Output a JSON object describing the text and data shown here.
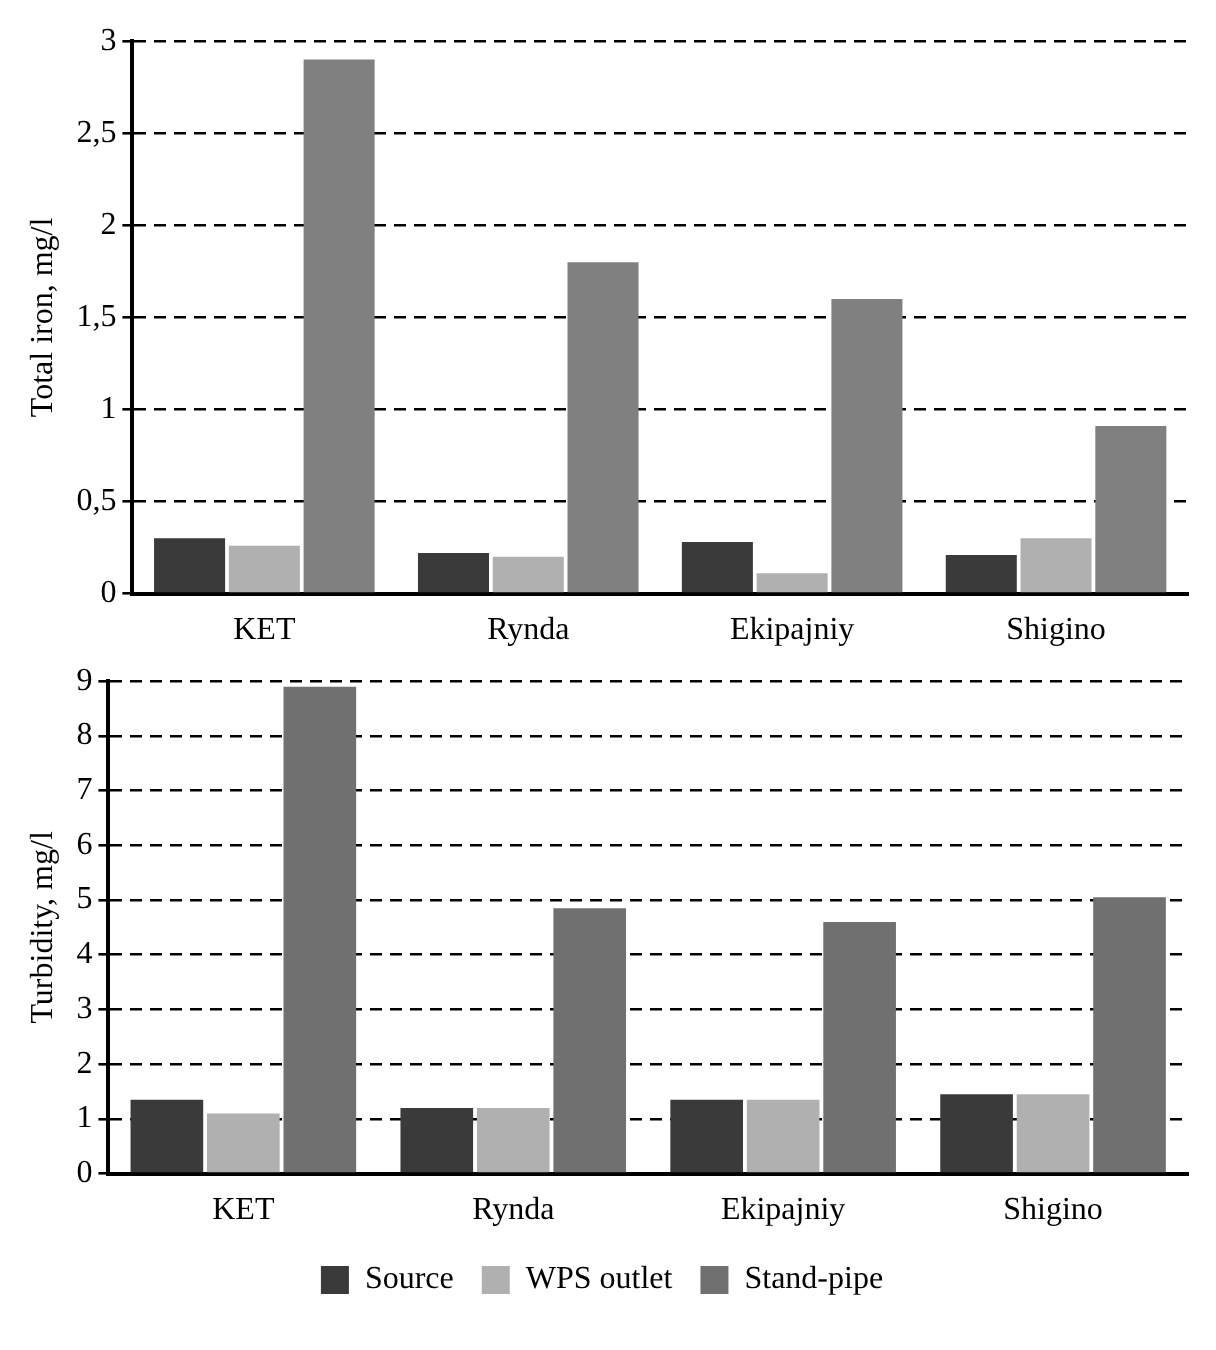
{
  "chart_data": [
    {
      "type": "bar",
      "ylabel": "Total iron, mg/l",
      "categories": [
        "KET",
        "Rynda",
        "Ekipajniy",
        "Shigino"
      ],
      "series": [
        {
          "color": "#3a3a3a",
          "values": [
            0.3,
            0.22,
            0.28,
            0.21
          ]
        },
        {
          "color": "#b0b0b0",
          "values": [
            0.26,
            0.2,
            0.11,
            0.3
          ]
        },
        {
          "color": "#808080",
          "values": [
            2.9,
            1.8,
            1.6,
            0.91
          ]
        }
      ],
      "ylim": [
        0,
        3
      ],
      "yticks": [
        0,
        {
          "value": 0.5,
          "label": "0,5"
        },
        1,
        {
          "value": 1.5,
          "label": "1,5"
        },
        2,
        {
          "value": 2.5,
          "label": "2,5"
        },
        3
      ],
      "grid": "y",
      "legend": false
    },
    {
      "type": "bar",
      "ylabel": "Turbidity, mg/l",
      "categories": [
        "KET",
        "Rynda",
        "Ekipajniy",
        "Shigino"
      ],
      "series": [
        {
          "name": "Source",
          "color": "#3a3a3a",
          "values": [
            1.35,
            1.2,
            1.35,
            1.45
          ]
        },
        {
          "name": "WPS outlet",
          "color": "#b0b0b0",
          "values": [
            1.1,
            1.2,
            1.35,
            1.45
          ]
        },
        {
          "name": "Stand-pipe",
          "color": "#707070",
          "values": [
            8.9,
            4.85,
            4.6,
            5.05
          ]
        }
      ],
      "ylim": [
        0,
        9
      ],
      "yticks": [
        0,
        1,
        2,
        3,
        4,
        5,
        6,
        7,
        8,
        9
      ],
      "grid": "y",
      "legend": "bottom"
    }
  ]
}
